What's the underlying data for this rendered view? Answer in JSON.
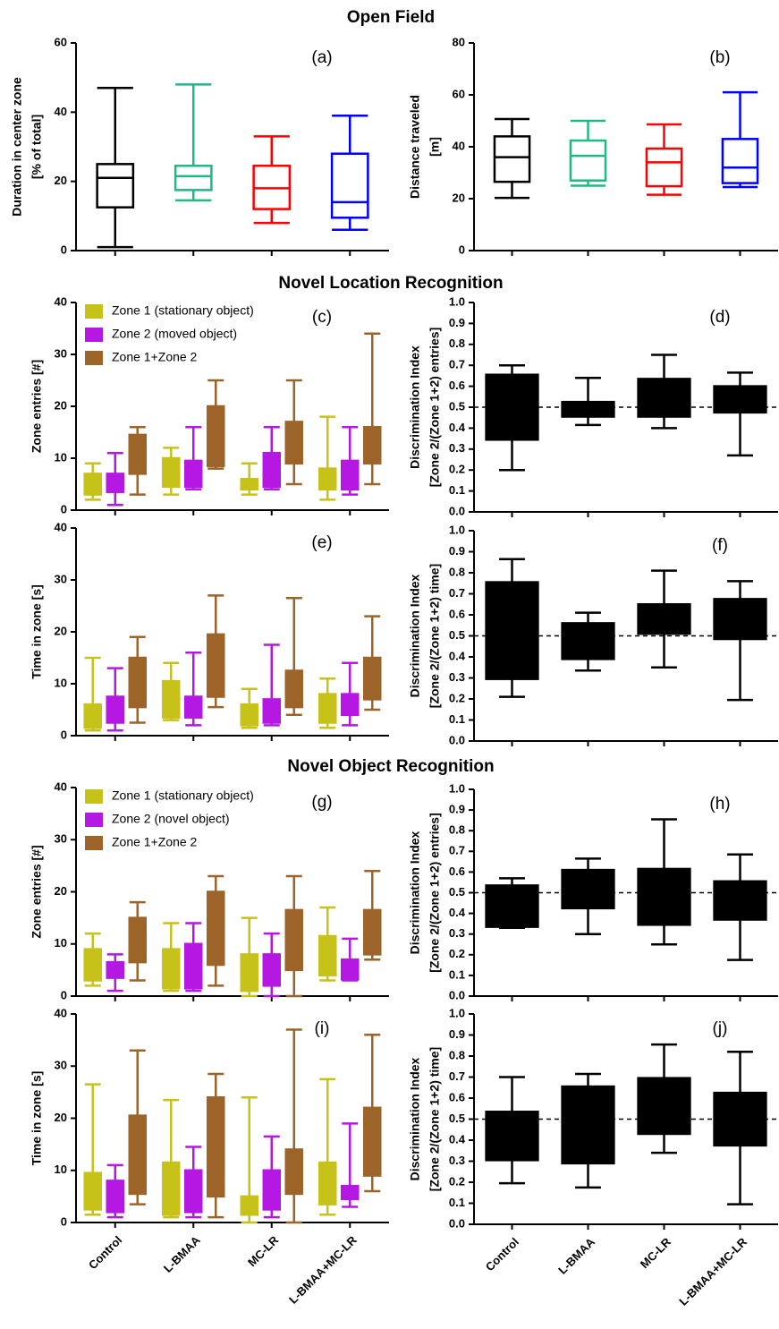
{
  "section_titles": [
    "Open Field",
    "Novel Location Recognition",
    "Novel Object Recognition"
  ],
  "chart_data": [
    {
      "type": "box",
      "panel_label": "(a)",
      "ylabel": [
        "Duration in center zone",
        "[% of total]"
      ],
      "ylim": [
        0,
        60
      ],
      "yticks": [
        0,
        20,
        40,
        60
      ],
      "filled": false,
      "series": [
        {
          "colors": [
            "#000000",
            "#1fba84",
            "#ff0000",
            "#0000ff"
          ],
          "values": [
            [
              1,
              12.5,
              21,
              25,
              47
            ],
            [
              14.5,
              17.5,
              21.5,
              24.5,
              48
            ],
            [
              8,
              12,
              18,
              24.5,
              33
            ],
            [
              6,
              9.5,
              14,
              28,
              39
            ]
          ]
        }
      ]
    },
    {
      "type": "box",
      "panel_label": "(b)",
      "ylabel": [
        "Distance traveled",
        "[m]"
      ],
      "ylim": [
        0,
        80
      ],
      "yticks": [
        0,
        20,
        40,
        60,
        80
      ],
      "filled": false,
      "series": [
        {
          "colors": [
            "#000000",
            "#1fba84",
            "#ff0000",
            "#0000ff"
          ],
          "values": [
            [
              20.3,
              26.5,
              36,
              44,
              50.7
            ],
            [
              25,
              27,
              36.5,
              42.4,
              50
            ],
            [
              21.5,
              24.8,
              34,
              39.3,
              48.6
            ],
            [
              24.5,
              26,
              32,
              43,
              61
            ]
          ]
        }
      ]
    },
    {
      "type": "box",
      "panel_label": "(c)",
      "ylabel": [
        "Zone entries [#]"
      ],
      "ylim": [
        0,
        40
      ],
      "yticks": [
        0,
        10,
        20,
        30,
        40
      ],
      "filled": true,
      "legend": "upper left",
      "series": [
        {
          "name": "Zone 1 (stationary object)",
          "color": "#c6c21a",
          "values": [
            [
              2,
              3,
              5,
              7,
              9
            ],
            [
              3,
              4.5,
              7,
              10,
              12
            ],
            [
              3,
              4,
              5,
              6,
              9
            ],
            [
              2,
              4,
              6,
              8,
              18
            ]
          ]
        },
        {
          "name": "Zone 2 (moved object)",
          "color": "#b418e2",
          "values": [
            [
              1,
              3.5,
              5,
              7,
              11
            ],
            [
              4,
              4.5,
              7,
              9.5,
              16
            ],
            [
              4,
              4.5,
              7,
              11,
              16
            ],
            [
              3,
              4,
              6,
              9.5,
              16
            ]
          ]
        },
        {
          "name": "Zone 1+Zone 2",
          "color": "#9c6428",
          "values": [
            [
              3,
              7,
              11,
              14.5,
              16
            ],
            [
              8,
              8.5,
              12,
              20,
              25
            ],
            [
              5,
              9,
              12,
              17,
              25
            ],
            [
              5,
              9,
              12,
              16,
              34
            ]
          ]
        }
      ]
    },
    {
      "type": "box",
      "panel_label": "(d)",
      "ylabel": [
        "Discrimination Index",
        "[Zone 2/(Zone 1+2) entries]"
      ],
      "ylim": [
        0,
        1
      ],
      "yticks": [
        {
          "value": 0,
          "label": "0.0"
        },
        0.1,
        0.2,
        0.3,
        0.4,
        0.5,
        0.6,
        0.7,
        0.8,
        0.9,
        {
          "value": 1,
          "label": "1.0"
        }
      ],
      "filled": true,
      "refline": 0.5,
      "series": [
        {
          "color": "#000000",
          "values": [
            [
              0.2,
              0.345,
              0.5,
              0.655,
              0.7
            ],
            [
              0.415,
              0.455,
              0.49,
              0.525,
              0.64
            ],
            [
              0.4,
              0.455,
              0.52,
              0.635,
              0.75
            ],
            [
              0.27,
              0.475,
              0.54,
              0.6,
              0.665
            ]
          ]
        }
      ]
    },
    {
      "type": "box",
      "panel_label": "(e)",
      "ylabel": [
        "Time in zone [s]"
      ],
      "ylim": [
        0,
        40
      ],
      "yticks": [
        0,
        10,
        20,
        30,
        40
      ],
      "filled": true,
      "series": [
        {
          "color": "#c6c21a",
          "values": [
            [
              1,
              1.5,
              3,
              6,
              15
            ],
            [
              3,
              3.5,
              6,
              10.5,
              14
            ],
            [
              1.5,
              2,
              3,
              6,
              9
            ],
            [
              1.5,
              2.5,
              5,
              8,
              11
            ]
          ]
        },
        {
          "color": "#b418e2",
          "values": [
            [
              1,
              2.5,
              5,
              7.5,
              13
            ],
            [
              2,
              3.5,
              5,
              7.5,
              16
            ],
            [
              2,
              2.5,
              5,
              7,
              17.5
            ],
            [
              2,
              4,
              6,
              8,
              14
            ]
          ]
        },
        {
          "color": "#9c6428",
          "values": [
            [
              2.5,
              5.5,
              9,
              15,
              19
            ],
            [
              5.5,
              7.5,
              12,
              19.5,
              27
            ],
            [
              4,
              5.5,
              8,
              12.5,
              26.5
            ],
            [
              5,
              7,
              11,
              15,
              23
            ]
          ]
        }
      ]
    },
    {
      "type": "box",
      "panel_label": "(f)",
      "ylabel": [
        "Discrimination Index",
        "[Zone 2/(Zone 1+2) time]"
      ],
      "ylim": [
        0,
        1
      ],
      "yticks": [
        {
          "value": 0,
          "label": "0.0"
        },
        0.1,
        0.2,
        0.3,
        0.4,
        0.5,
        0.6,
        0.7,
        0.8,
        0.9,
        {
          "value": 1,
          "label": "1.0"
        }
      ],
      "filled": true,
      "refline": 0.5,
      "series": [
        {
          "color": "#000000",
          "values": [
            [
              0.21,
              0.295,
              0.5,
              0.755,
              0.865
            ],
            [
              0.335,
              0.39,
              0.47,
              0.56,
              0.61
            ],
            [
              0.35,
              0.51,
              0.6,
              0.65,
              0.81
            ],
            [
              0.195,
              0.485,
              0.6,
              0.675,
              0.76
            ]
          ]
        }
      ]
    },
    {
      "type": "box",
      "panel_label": "(g)",
      "ylabel": [
        "Zone entries [#]"
      ],
      "ylim": [
        0,
        40
      ],
      "yticks": [
        0,
        10,
        20,
        30,
        40
      ],
      "filled": true,
      "legend": "upper left",
      "series": [
        {
          "name": "Zone 1 (stationary object)",
          "color": "#c6c21a",
          "values": [
            [
              2,
              3,
              6,
              9,
              12
            ],
            [
              1,
              1.5,
              5,
              9,
              14
            ],
            [
              0,
              1,
              4,
              8,
              15
            ],
            [
              3,
              4,
              8,
              11.5,
              17
            ]
          ]
        },
        {
          "name": "Zone 2 (novel object)",
          "color": "#b418e2",
          "values": [
            [
              1,
              3.5,
              5,
              6.5,
              8
            ],
            [
              1,
              1.5,
              6,
              10,
              14
            ],
            [
              0,
              2,
              5,
              8,
              12
            ],
            [
              3,
              3.2,
              5,
              7,
              11
            ]
          ]
        },
        {
          "name": "Zone 1+Zone 2",
          "color": "#9c6428",
          "values": [
            [
              3,
              6.5,
              11,
              15,
              18
            ],
            [
              2,
              6,
              12,
              20,
              23
            ],
            [
              0,
              5,
              11,
              16.5,
              23
            ],
            [
              7,
              8,
              12,
              16.5,
              24
            ]
          ]
        }
      ]
    },
    {
      "type": "box",
      "panel_label": "(h)",
      "ylabel": [
        "Discrimination Index",
        "[Zone 2/(Zone 1+2) entries]"
      ],
      "ylim": [
        0,
        1
      ],
      "yticks": [
        {
          "value": 0,
          "label": "0.0"
        },
        0.1,
        0.2,
        0.3,
        0.4,
        0.5,
        0.6,
        0.7,
        0.8,
        0.9,
        {
          "value": 1,
          "label": "1.0"
        }
      ],
      "filled": true,
      "refline": 0.5,
      "series": [
        {
          "color": "#000000",
          "values": [
            [
              0.33,
              0.335,
              0.45,
              0.535,
              0.57
            ],
            [
              0.3,
              0.425,
              0.52,
              0.61,
              0.665
            ],
            [
              0.25,
              0.345,
              0.5,
              0.615,
              0.855
            ],
            [
              0.175,
              0.37,
              0.47,
              0.555,
              0.685
            ]
          ]
        }
      ]
    },
    {
      "type": "box",
      "panel_label": "(i)",
      "ylabel": [
        "Time in zone [s]"
      ],
      "ylim": [
        0,
        40
      ],
      "yticks": [
        0,
        10,
        20,
        30,
        40
      ],
      "filled": true,
      "categories": [
        "Control",
        "L-BMAA",
        "MC-LR",
        "L-BMAA+MC-LR"
      ],
      "series": [
        {
          "color": "#c6c21a",
          "values": [
            [
              1.5,
              2.5,
              6,
              9.5,
              26.5
            ],
            [
              1,
              1.5,
              6,
              11.5,
              23.5
            ],
            [
              0,
              1.5,
              3,
              5,
              24
            ],
            [
              1.5,
              3.5,
              8,
              11.5,
              27.5
            ]
          ]
        },
        {
          "color": "#b418e2",
          "values": [
            [
              1,
              2,
              5,
              8,
              11
            ],
            [
              1,
              2,
              5,
              10,
              14.5
            ],
            [
              1,
              2.5,
              6,
              10,
              16.5
            ],
            [
              3,
              4.5,
              6,
              7,
              19
            ]
          ]
        },
        {
          "color": "#9c6428",
          "values": [
            [
              3.5,
              5.5,
              12,
              20.5,
              33
            ],
            [
              1,
              5,
              14,
              24,
              28.5
            ],
            [
              0,
              5.5,
              10,
              14,
              37
            ],
            [
              6,
              9,
              15,
              22,
              36
            ]
          ]
        }
      ]
    },
    {
      "type": "box",
      "panel_label": "(j)",
      "ylabel": [
        "Discrimination Index",
        "[Zone 2/(Zone 1+2) time]"
      ],
      "ylim": [
        0,
        1
      ],
      "yticks": [
        {
          "value": 0,
          "label": "0.0"
        },
        0.1,
        0.2,
        0.3,
        0.4,
        0.5,
        0.6,
        0.7,
        0.8,
        0.9,
        {
          "value": 1,
          "label": "1.0"
        }
      ],
      "filled": true,
      "refline": 0.5,
      "categories": [
        "Control",
        "L-BMAA",
        "MC-LR",
        "L-BMAA+MC-LR"
      ],
      "series": [
        {
          "color": "#000000",
          "values": [
            [
              0.195,
              0.305,
              0.44,
              0.535,
              0.7
            ],
            [
              0.175,
              0.29,
              0.5,
              0.655,
              0.715
            ],
            [
              0.34,
              0.43,
              0.55,
              0.695,
              0.855
            ],
            [
              0.095,
              0.375,
              0.5,
              0.625,
              0.82
            ]
          ]
        }
      ]
    }
  ]
}
